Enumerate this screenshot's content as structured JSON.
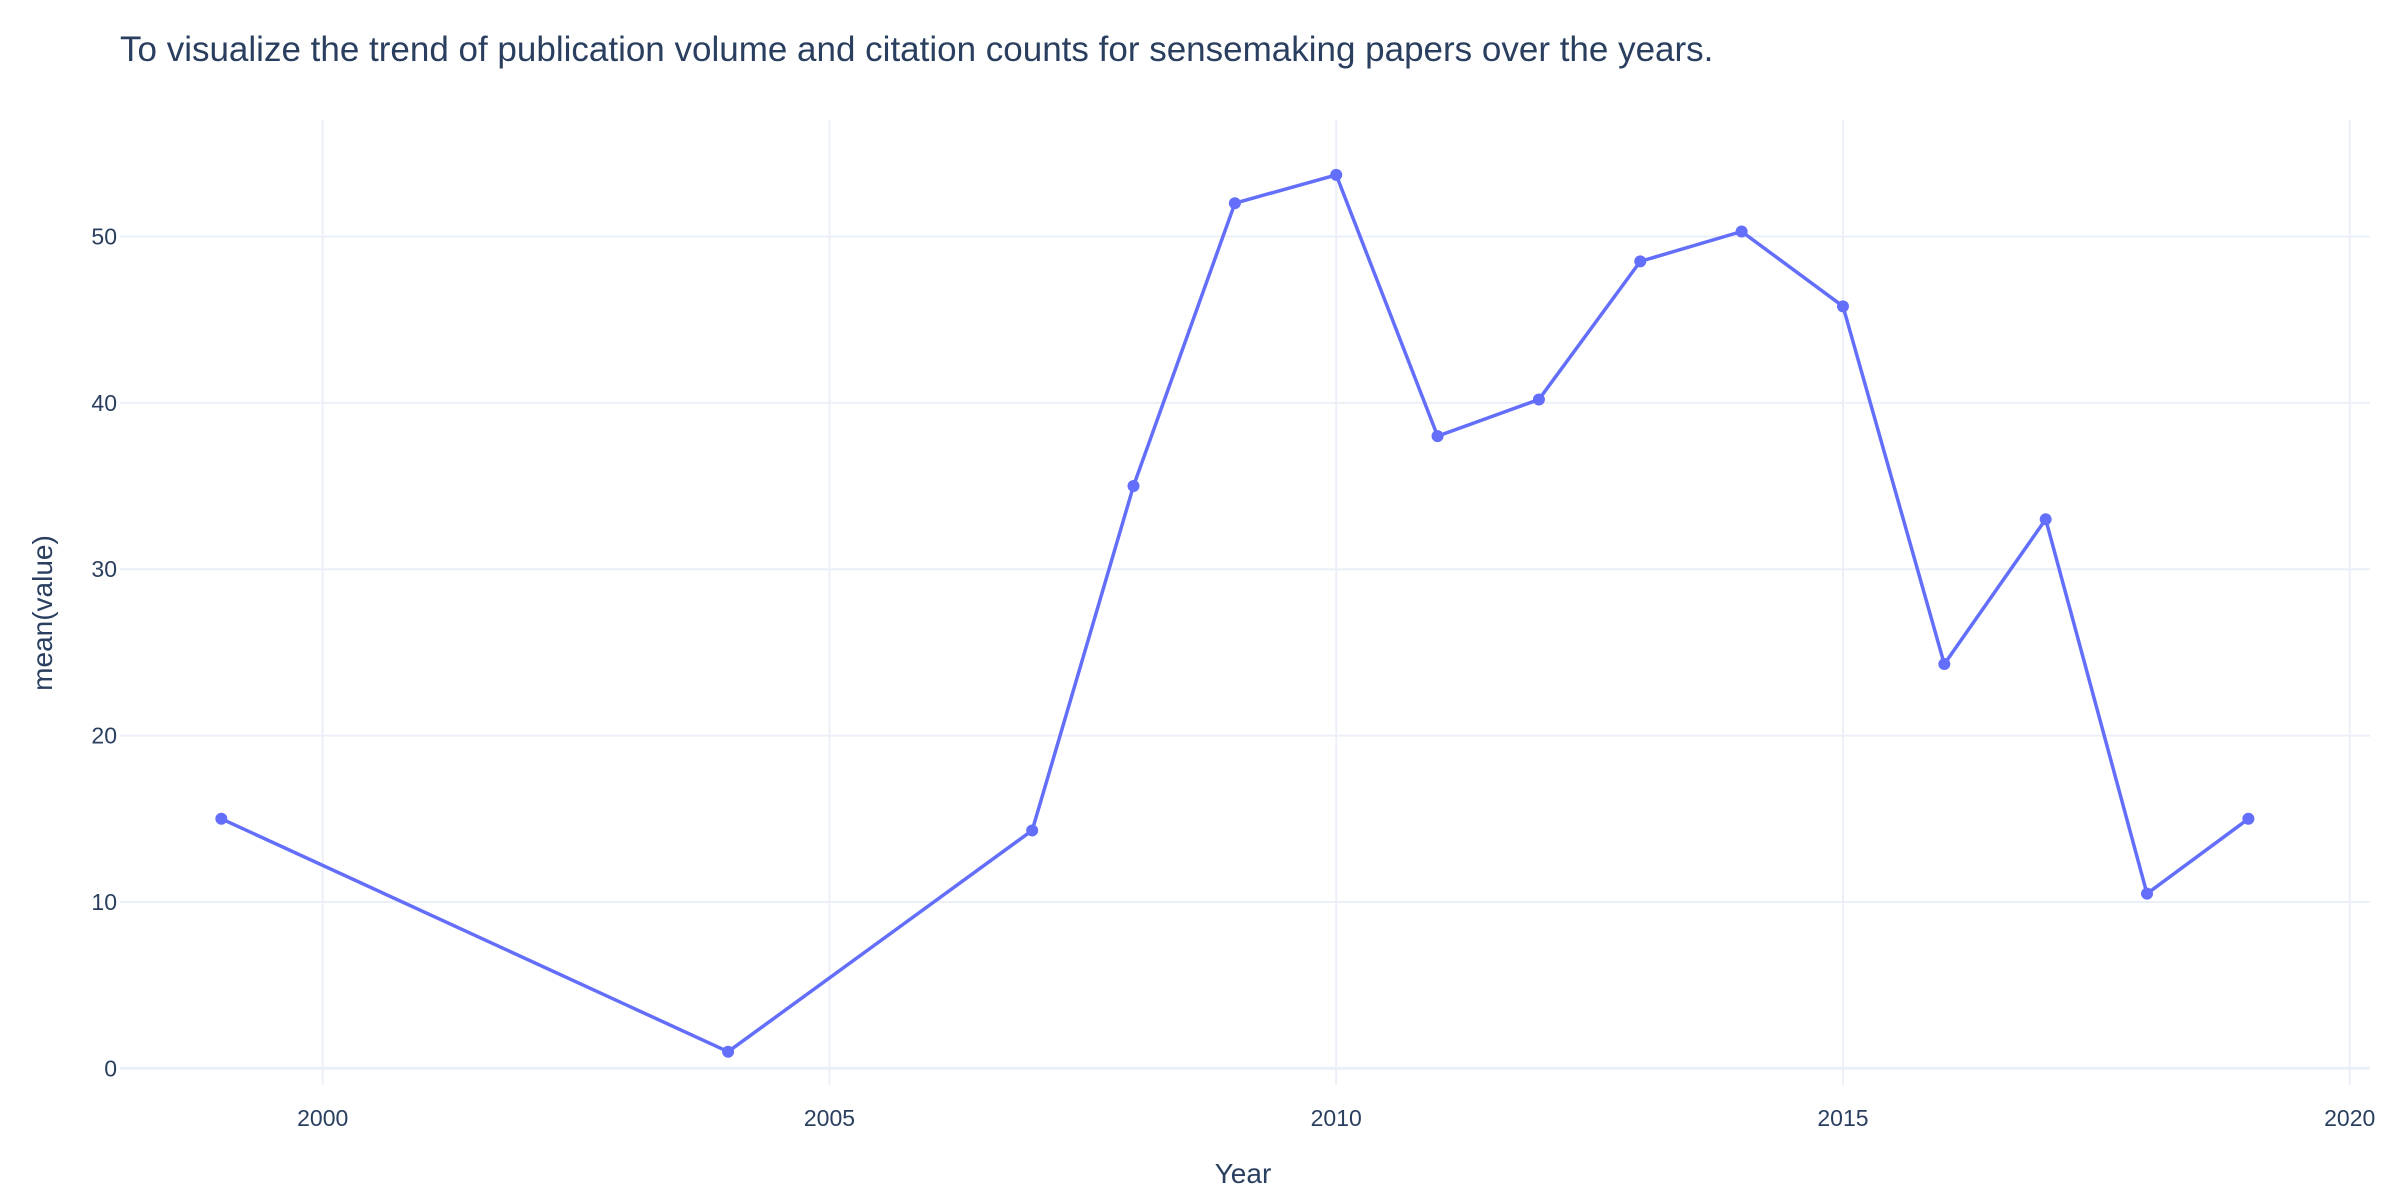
{
  "chart_data": {
    "type": "line",
    "title": "To visualize the trend of publication volume and citation counts for sensemaking papers over the years.",
    "xlabel": "Year",
    "ylabel": "mean(value)",
    "x": [
      1999,
      2004,
      2007,
      2008,
      2009,
      2010,
      2011,
      2012,
      2013,
      2014,
      2015,
      2016,
      2017,
      2018,
      2019
    ],
    "y": [
      15,
      1,
      14.3,
      35,
      52,
      53.7,
      38,
      40.2,
      48.5,
      50.3,
      45.8,
      24.3,
      33,
      10.5,
      15
    ],
    "xlim": [
      1998,
      2020.2
    ],
    "ylim": [
      -1,
      57
    ],
    "xticks": [
      2000,
      2005,
      2010,
      2015,
      2020
    ],
    "yticks": [
      0,
      10,
      20,
      30,
      40,
      50
    ],
    "grid": true,
    "line_color": "#636efa",
    "grid_color": "#ebf0f8",
    "text_color": "#2a3f5f"
  }
}
